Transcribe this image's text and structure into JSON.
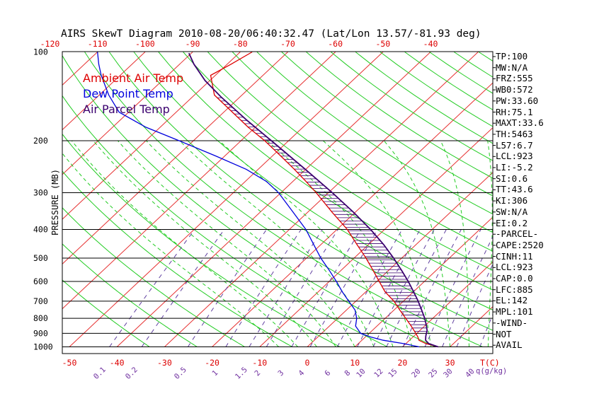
{
  "chart_data": {
    "type": "line",
    "diagram": "skew-T log-P",
    "title": "AIRS SkewT Diagram 2010-08-20/06:40:32.47 (Lat/Lon 13.57/-81.93 deg)",
    "ylabel": "PRESSURE (MB)",
    "x_unit_label": "T(C)",
    "mixing_ratio_unit_label": "q(g/kg)",
    "pressure_range_mb": [
      1000,
      100
    ],
    "pressure_scale": "log",
    "pressure_ticks": [
      "100",
      "200",
      "300",
      "400",
      "500",
      "600",
      "700",
      "800",
      "900",
      "1000"
    ],
    "top_temperature_ticks": [
      "-120",
      "-110",
      "-100",
      "-90",
      "-80",
      "-70",
      "-60",
      "-50",
      "-40"
    ],
    "bottom_temperature_ticks": [
      "-50",
      "-40",
      "-30",
      "-20",
      "-10",
      "0",
      "10",
      "20",
      "30"
    ],
    "mixing_ratio_ticks": [
      "0.1",
      "0.2",
      "0.5",
      "1",
      "1.5",
      "2",
      "3",
      "4",
      "6",
      "8",
      "10",
      "12",
      "15",
      "20",
      "25",
      "30",
      "40"
    ],
    "legend": [
      {
        "label": "Ambient Air Temp",
        "color": "#dd0000"
      },
      {
        "label": "Dew Point Temp",
        "color": "#0000dd"
      },
      {
        "label": "Air Parcel Temp",
        "color": "#3a006e"
      }
    ],
    "series": [
      {
        "name": "Ambient Air Temp",
        "color": "#dd0000",
        "pressure": [
          1000,
          975,
          950,
          925,
          900,
          850,
          800,
          750,
          700,
          650,
          600,
          550,
          500,
          450,
          400,
          350,
          300,
          275,
          250,
          225,
          200,
          180,
          160,
          140,
          120,
          110,
          100
        ],
        "temperature": [
          27.5,
          24.2,
          22.0,
          21.0,
          19.8,
          17.2,
          14.3,
          11.2,
          8.0,
          4.0,
          0.5,
          -3.3,
          -7.5,
          -12.4,
          -17.8,
          -24.8,
          -32.6,
          -37.2,
          -42.4,
          -48.3,
          -55.0,
          -61.5,
          -68.2,
          -75.8,
          -81.0,
          -79.2,
          -77.5
        ]
      },
      {
        "name": "Dew Point Temp",
        "color": "#0000dd",
        "pressure": [
          1000,
          975,
          950,
          925,
          900,
          850,
          800,
          750,
          700,
          650,
          600,
          550,
          500,
          450,
          400,
          350,
          300,
          275,
          250,
          225,
          200,
          180,
          160,
          140,
          120,
          110,
          100
        ],
        "temperature": [
          23.5,
          19.5,
          14.5,
          11.0,
          8.2,
          5.5,
          4.0,
          1.8,
          -1.5,
          -5.0,
          -8.5,
          -12.5,
          -17.0,
          -21.5,
          -26.5,
          -33.0,
          -40.5,
          -45.5,
          -52.5,
          -62.0,
          -73.0,
          -83.0,
          -92.0,
          -98.0,
          -104.0,
          -107.0,
          -110.0
        ]
      },
      {
        "name": "Air Parcel Temp",
        "color": "#3a006e",
        "pressure": [
          1000,
          975,
          950,
          923,
          900,
          885,
          850,
          800,
          750,
          700,
          650,
          600,
          550,
          500,
          450,
          400,
          350,
          300,
          250,
          200,
          170,
          142,
          125,
          110,
          101
        ],
        "temperature": [
          27.5,
          24.8,
          23.4,
          22.6,
          22.0,
          21.7,
          20.4,
          18.3,
          15.8,
          13.1,
          10.0,
          6.6,
          2.7,
          -1.7,
          -6.8,
          -12.9,
          -20.3,
          -29.2,
          -40.1,
          -53.6,
          -63.5,
          -74.0,
          -81.0,
          -87.0,
          -90.5
        ]
      }
    ],
    "indices": [
      "TP:100",
      "MW:N/A",
      "FRZ:555",
      "WB0:572",
      "PW:33.60",
      "RH:75.1",
      "MAXT:33.6",
      "TH:5463",
      "L57:6.7",
      "LCL:923",
      "LI:-5.2",
      "SI:0.6",
      "TT:43.6",
      "KI:306",
      "SW:N/A",
      "EI:0.2",
      "-PARCEL-",
      "CAPE:2520",
      "CINH:11",
      "LCL:923",
      "CAP:0.0",
      "LFC:885",
      "EL:142",
      "MPL:101",
      "-WIND-",
      "NOT",
      "AVAIL"
    ]
  }
}
